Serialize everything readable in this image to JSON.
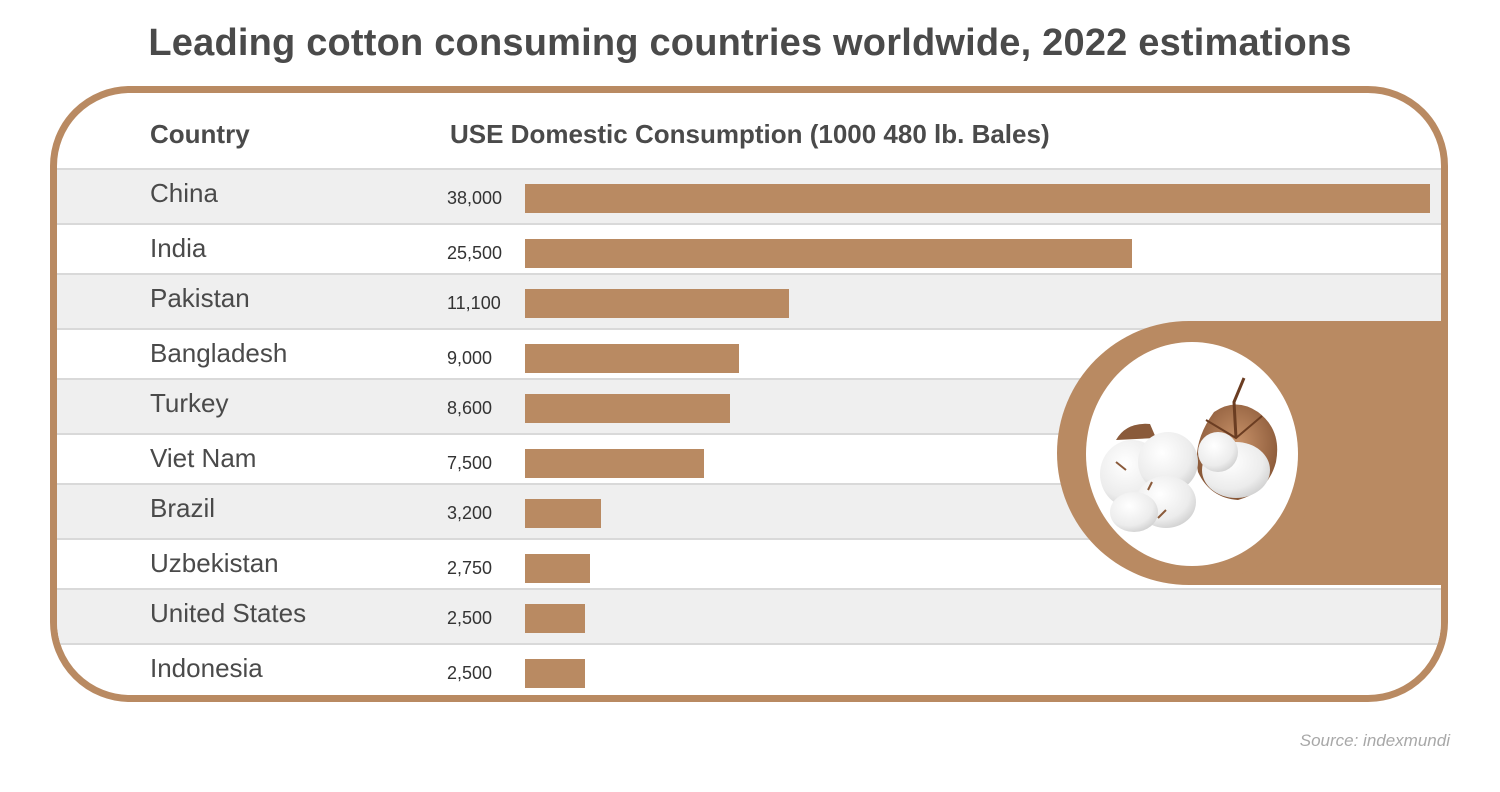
{
  "title": "Leading cotton consuming countries worldwide, 2022 estimations",
  "source": "Source: indexmundi",
  "colors": {
    "bar": "#b98a62",
    "frame": "#b98a62",
    "row_alt": "#efefef",
    "text": "#4a4a4a"
  },
  "chart_data": {
    "type": "bar",
    "orientation": "horizontal",
    "title": "Leading cotton consuming countries worldwide, 2022 estimations",
    "xlabel": "USE Domestic Consumption (1000 480 lb. Bales)",
    "ylabel": "Country",
    "column_headers": {
      "country": "Country",
      "value": "USE Domestic Consumption (1000 480 lb. Bales)"
    },
    "categories": [
      "China",
      "India",
      "Pakistan",
      "Bangladesh",
      "Turkey",
      "Viet Nam",
      "Brazil",
      "Uzbekistan",
      "United States",
      "Indonesia"
    ],
    "values": [
      38000,
      25500,
      11100,
      9000,
      8600,
      7500,
      3200,
      2750,
      2500,
      2500
    ],
    "value_labels": [
      "38,000",
      "25,500",
      "11,100",
      "9,000",
      "8,600",
      "7,500",
      "3,200",
      "2,750",
      "2,500",
      "2,500"
    ],
    "xlim": [
      0,
      38000
    ],
    "grid": false,
    "legend": "none"
  },
  "image": {
    "name": "cotton-bolls-photo"
  }
}
